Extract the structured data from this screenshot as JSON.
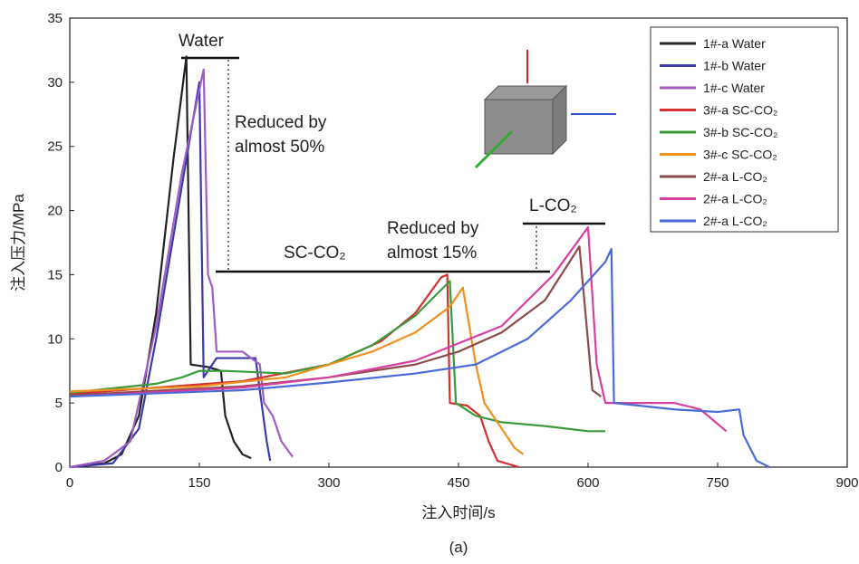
{
  "chart_data": {
    "type": "line",
    "xlabel": "注入时间/s",
    "ylabel": "注入压力/MPa",
    "caption": "(a)",
    "xlim": [
      0,
      900
    ],
    "ylim": [
      0,
      35
    ],
    "xticks": [
      0,
      150,
      300,
      450,
      600,
      750,
      900
    ],
    "yticks": [
      0,
      5,
      10,
      15,
      20,
      25,
      30,
      35
    ],
    "legend": "upper right",
    "annotations": [
      "Water",
      "Reduced by",
      "almost 50%",
      "SC-CO₂",
      "Reduced by",
      "almost 15%",
      "L-CO₂"
    ],
    "series": [
      {
        "name": "1#-a Water",
        "color": "#222222",
        "x": [
          0,
          40,
          60,
          80,
          100,
          120,
          135,
          140,
          160,
          175,
          180,
          190,
          200,
          210
        ],
        "values": [
          0,
          0.3,
          1,
          4,
          12,
          24,
          32,
          8,
          7.8,
          7.5,
          4,
          2,
          1,
          0.7
        ]
      },
      {
        "name": "1#-b Water",
        "color": "#3a3aa8",
        "x": [
          0,
          50,
          80,
          100,
          130,
          150,
          155,
          170,
          200,
          215,
          220,
          228,
          232
        ],
        "values": [
          0,
          0.3,
          3,
          10,
          22,
          30,
          7,
          8.5,
          8.5,
          8.5,
          6,
          2,
          0.5
        ]
      },
      {
        "name": "1#-c Water",
        "color": "#a05cc0",
        "x": [
          0,
          40,
          70,
          100,
          130,
          155,
          160,
          165,
          170,
          200,
          220,
          225,
          235,
          245,
          258
        ],
        "values": [
          0,
          0.5,
          2,
          11,
          23,
          31,
          15,
          14,
          9,
          9,
          8,
          5,
          4,
          2,
          0.8
        ]
      },
      {
        "name": "3#-a SC-CO₂",
        "color": "#d43030",
        "x": [
          0,
          100,
          200,
          300,
          360,
          400,
          430,
          437,
          440,
          460,
          475,
          485,
          495,
          520
        ],
        "values": [
          5.7,
          6.2,
          6.7,
          8,
          9.8,
          12,
          14.8,
          15,
          5,
          4.8,
          4,
          2,
          0.5,
          0
        ]
      },
      {
        "name": "3#-b SC-CO₂",
        "color": "#3a9a3a",
        "x": [
          0,
          100,
          130,
          150,
          180,
          250,
          300,
          350,
          400,
          440,
          447,
          470,
          500,
          550,
          600,
          620
        ],
        "values": [
          5.8,
          6.5,
          7,
          7.5,
          7.5,
          7.3,
          8,
          9.5,
          11.8,
          14.5,
          5,
          4,
          3.5,
          3.2,
          2.8,
          2.8
        ]
      },
      {
        "name": "3#-c SC-CO₂",
        "color": "#f0901e",
        "x": [
          0,
          150,
          250,
          300,
          350,
          400,
          440,
          455,
          470,
          480,
          500,
          515,
          525
        ],
        "values": [
          5.9,
          6.3,
          7,
          8,
          9,
          10.5,
          12.5,
          14,
          8,
          5,
          3,
          1.5,
          1
        ]
      },
      {
        "name": "2#-a L-CO₂",
        "color": "#8b4a4a",
        "x": [
          0,
          200,
          300,
          400,
          450,
          500,
          550,
          590,
          597,
          605,
          615
        ],
        "values": [
          5.6,
          6.3,
          7,
          8,
          9,
          10.5,
          13,
          17.2,
          12,
          6,
          5.5
        ]
      },
      {
        "name": "2#-a L-CO₂",
        "color": "#d640a0",
        "x": [
          0,
          200,
          300,
          400,
          500,
          560,
          600,
          610,
          620,
          700,
          730,
          760
        ],
        "values": [
          5.5,
          6.2,
          7,
          8.3,
          11,
          15,
          18.7,
          8,
          5,
          5,
          4.5,
          2.8
        ]
      },
      {
        "name": "2#-a L-CO₂",
        "color": "#4a6ad8",
        "x": [
          0,
          200,
          300,
          400,
          470,
          530,
          580,
          620,
          627,
          630,
          700,
          750,
          775,
          780,
          795,
          810
        ],
        "values": [
          5.5,
          6,
          6.6,
          7.3,
          8,
          10,
          13,
          16,
          17,
          5,
          4.5,
          4.3,
          4.5,
          2.5,
          0.5,
          0
        ]
      }
    ]
  }
}
